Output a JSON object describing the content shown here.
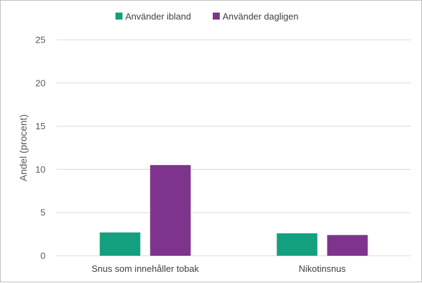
{
  "chart_data": {
    "type": "bar",
    "categories": [
      "Snus som innehåller tobak",
      "Nikotinsnus"
    ],
    "series": [
      {
        "name": "Använder ibland",
        "values": [
          2.7,
          2.6
        ],
        "color": "#13a07e"
      },
      {
        "name": "Använder dagligen",
        "values": [
          10.5,
          2.4
        ],
        "color": "#7e348d"
      }
    ],
    "ylabel": "Andel (procent)",
    "xlabel": "",
    "ylim": [
      0,
      25
    ],
    "yticks": [
      "0",
      "5",
      "10",
      "15",
      "20",
      "25"
    ],
    "grid": true,
    "legend_position": "top"
  }
}
